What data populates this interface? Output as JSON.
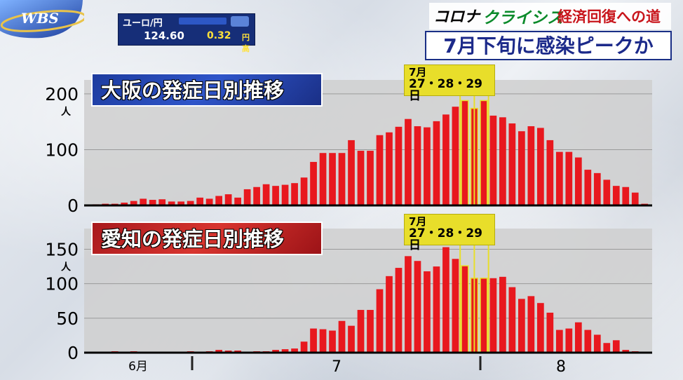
{
  "broadcast": {
    "logo_text": "WBS",
    "ticker_label": "ユーロ/円",
    "ticker_rate": "124.60",
    "ticker_change": "0.32",
    "ticker_change_unit": "円高",
    "series_title_part1": "コロナ",
    "series_title_part2": "クライシス",
    "series_title_part3": "経済回復への道",
    "headline": "7月下旬に感染ピークか"
  },
  "colors": {
    "bar": "#e8181e",
    "peak_highlight": "#e8de2a",
    "plot_bg": "#cfcfcf",
    "osaka_panel": "#2f55c9",
    "aichi_panel": "#d8352f"
  },
  "chart_data": [
    {
      "type": "bar",
      "title": "大阪の発症日別推移",
      "peak_label_line1": "7月",
      "peak_label_line2": "27・28・29日",
      "y_unit": "人",
      "ylim": [
        0,
        225
      ],
      "yticks": [
        0,
        100,
        200
      ],
      "ytick_labels": [
        "0",
        "100",
        "200"
      ],
      "peak_indices": [
        39,
        40,
        41
      ],
      "values": [
        2,
        3,
        3,
        5,
        8,
        12,
        10,
        11,
        7,
        7,
        8,
        14,
        12,
        17,
        20,
        14,
        29,
        33,
        38,
        35,
        37,
        40,
        50,
        78,
        94,
        94,
        94,
        117,
        98,
        98,
        126,
        131,
        141,
        155,
        142,
        140,
        151,
        163,
        177,
        188,
        174,
        188,
        161,
        158,
        147,
        133,
        142,
        139,
        117,
        96,
        96,
        86,
        64,
        58,
        46,
        35,
        33,
        23,
        3
      ],
      "x_axis_labels": [
        "6月",
        "7",
        "8"
      ]
    },
    {
      "type": "bar",
      "title": "愛知の発症日別推移",
      "peak_label_line1": "7月",
      "peak_label_line2": "27・28・29日",
      "y_unit": "人",
      "ylim": [
        0,
        180
      ],
      "yticks": [
        0,
        50,
        100,
        150
      ],
      "ytick_labels": [
        "0",
        "50",
        "100",
        "150"
      ],
      "peak_indices": [
        39,
        40,
        41
      ],
      "values": [
        0,
        0,
        2,
        0,
        2,
        0,
        0,
        0,
        0,
        0,
        2,
        0,
        2,
        4,
        3,
        3,
        1,
        2,
        2,
        4,
        5,
        6,
        16,
        35,
        34,
        32,
        46,
        39,
        62,
        62,
        92,
        111,
        123,
        140,
        133,
        118,
        125,
        153,
        136,
        126,
        108,
        108,
        108,
        110,
        95,
        78,
        82,
        72,
        58,
        33,
        35,
        44,
        33,
        26,
        14,
        18,
        4,
        2,
        0
      ],
      "x_axis_labels": [
        "6月",
        "7",
        "8"
      ]
    }
  ]
}
